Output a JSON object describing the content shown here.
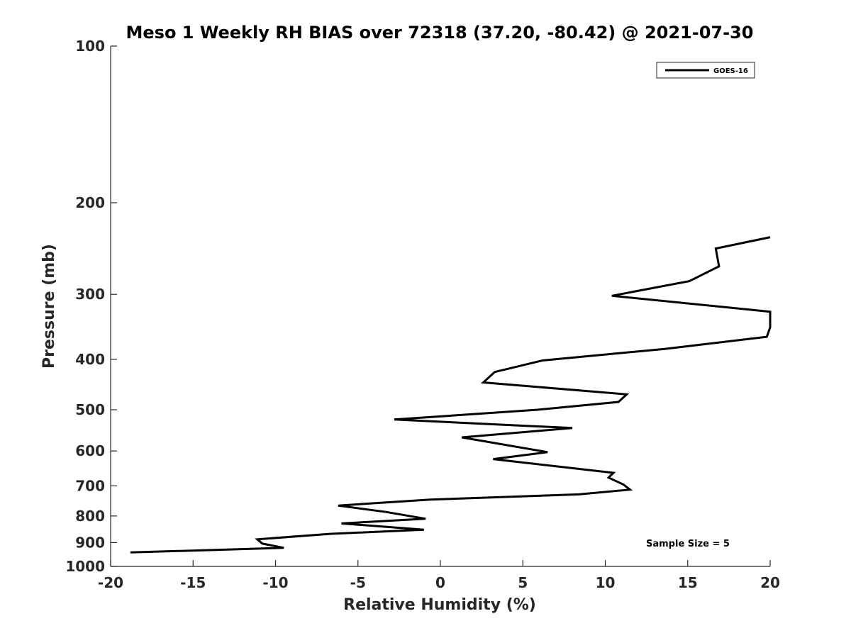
{
  "chart_data": {
    "type": "line",
    "title": "Meso 1 Weekly RH BIAS over 72318 (37.20, -80.42) @ 2021-07-30",
    "xlabel": "Relative Humidity (%)",
    "ylabel": "Pressure (mb)",
    "xlim": [
      -20,
      20
    ],
    "ylim": [
      1000,
      100
    ],
    "y_scale": "log",
    "y_reversed": true,
    "xticks": [
      -20,
      -15,
      -10,
      -5,
      0,
      5,
      10,
      15,
      20
    ],
    "yticks": [
      100,
      200,
      300,
      400,
      500,
      600,
      700,
      800,
      900,
      1000
    ],
    "legend": {
      "position": "top-right",
      "entries": [
        "GOES-16"
      ]
    },
    "annotation": "Sample Size = 5",
    "grid": false,
    "series": [
      {
        "name": "GOES-16",
        "color": "#000000",
        "points": [
          [
            20.0,
            233
          ],
          [
            16.7,
            245
          ],
          [
            16.9,
            265
          ],
          [
            15.1,
            283
          ],
          [
            10.4,
            302
          ],
          [
            20.0,
            324
          ],
          [
            20.0,
            327
          ],
          [
            20.0,
            347
          ],
          [
            19.8,
            362
          ],
          [
            13.6,
            382
          ],
          [
            6.2,
            402
          ],
          [
            3.3,
            423
          ],
          [
            2.6,
            443
          ],
          [
            11.3,
            467
          ],
          [
            10.8,
            483
          ],
          [
            5.9,
            500
          ],
          [
            -2.8,
            522
          ],
          [
            8.0,
            542
          ],
          [
            1.3,
            565
          ],
          [
            6.5,
            603
          ],
          [
            3.2,
            622
          ],
          [
            10.5,
            661
          ],
          [
            10.2,
            675
          ],
          [
            11.1,
            696
          ],
          [
            11.5,
            712
          ],
          [
            8.4,
            727
          ],
          [
            -0.6,
            744
          ],
          [
            -6.2,
            764
          ],
          [
            -3.3,
            786
          ],
          [
            -0.9,
            810
          ],
          [
            -6.0,
            827
          ],
          [
            -1.0,
            850
          ],
          [
            -6.7,
            866
          ],
          [
            -11.1,
            887
          ],
          [
            -10.8,
            904
          ],
          [
            -9.5,
            921
          ],
          [
            -18.8,
            940
          ]
        ]
      }
    ]
  }
}
